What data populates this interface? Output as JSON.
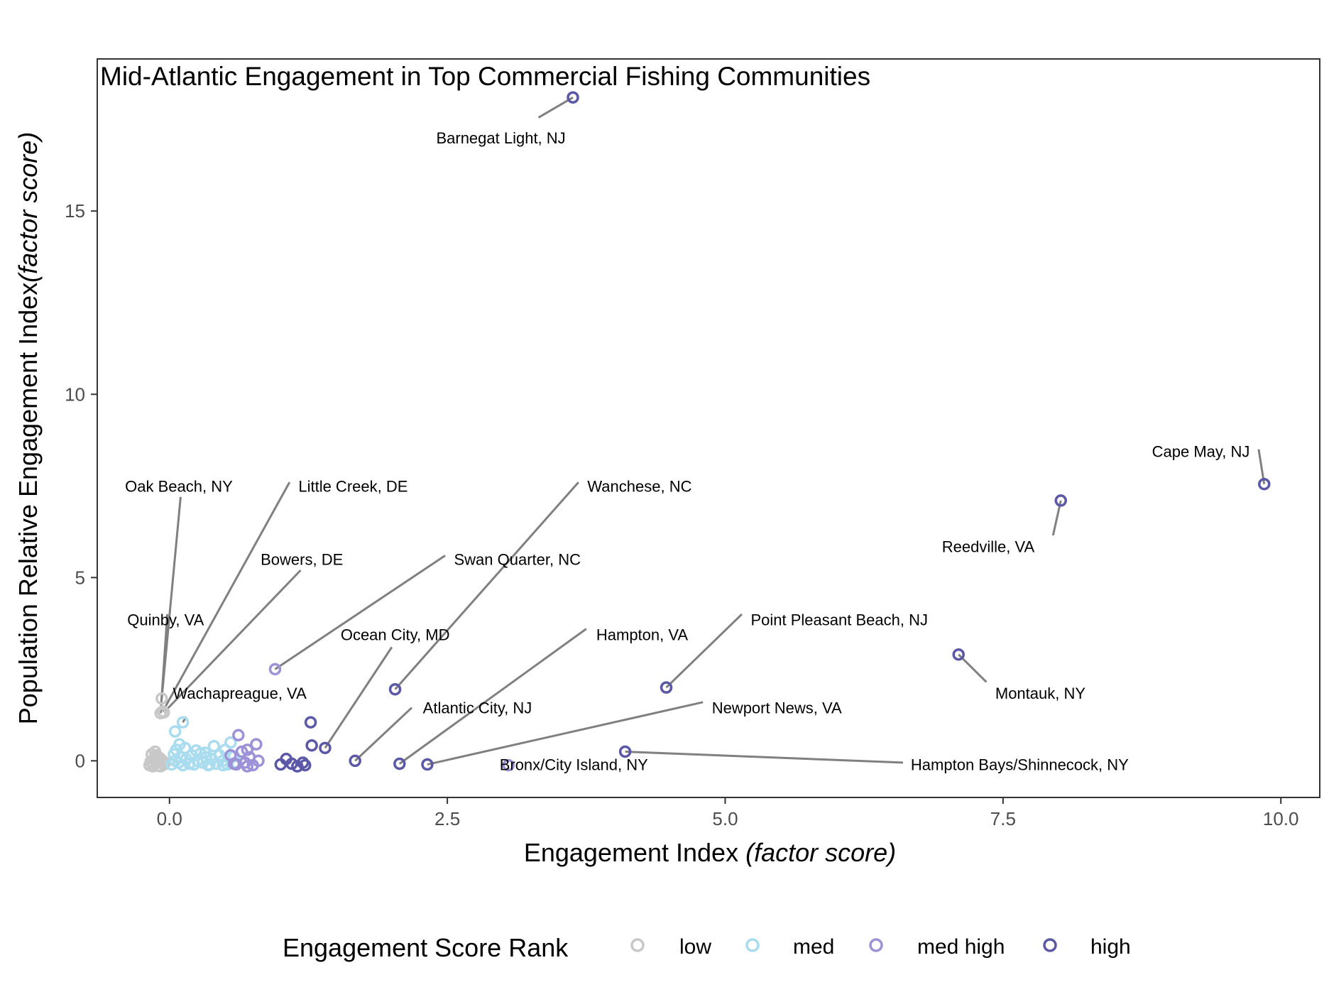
{
  "chart_data": {
    "type": "scatter",
    "title": "Mid-Atlantic Engagement in Top Commercial Fishing Communities",
    "xlabel": "Engagement Index",
    "xlabel_italic": "(factor score)",
    "ylabel": "Population Relative Engagement Index",
    "ylabel_italic": "(factor score)",
    "xlim": [
      -0.65,
      10.35
    ],
    "ylim": [
      -1.0,
      19.15
    ],
    "xticks": [
      0.0,
      2.5,
      5.0,
      7.5,
      10.0
    ],
    "xtick_labels": [
      "0.0",
      "2.5",
      "5.0",
      "7.5",
      "10.0"
    ],
    "yticks": [
      0,
      5,
      10,
      15
    ],
    "ytick_labels": [
      "0",
      "5",
      "10",
      "15"
    ],
    "grid": false,
    "legend": {
      "title": "Engagement Score Rank",
      "position": "bottom",
      "entries": [
        {
          "label": "low",
          "color": "#c8c8c8"
        },
        {
          "label": "med",
          "color": "#a9dcef"
        },
        {
          "label": "med high",
          "color": "#9d92d8"
        },
        {
          "label": "high",
          "color": "#5b58a8"
        }
      ]
    },
    "series": [
      {
        "name": "low",
        "color": "#c8c8c8",
        "points": [
          [
            -0.15,
            -0.1
          ],
          [
            -0.12,
            -0.05
          ],
          [
            -0.1,
            0.0
          ],
          [
            -0.18,
            -0.12
          ],
          [
            -0.08,
            -0.15
          ],
          [
            -0.14,
            0.05
          ],
          [
            -0.06,
            -0.08
          ],
          [
            -0.11,
            0.12
          ],
          [
            -0.16,
            0.18
          ],
          [
            -0.13,
            0.25
          ],
          [
            -0.09,
            0.08
          ],
          [
            -0.05,
            -0.1
          ],
          [
            -0.17,
            -0.02
          ],
          [
            -0.1,
            -0.14
          ],
          [
            -0.07,
            0.02
          ],
          [
            -0.12,
            0.15
          ],
          [
            -0.15,
            -0.15
          ],
          [
            -0.04,
            -0.05
          ],
          [
            -0.08,
            1.3
          ],
          [
            -0.06,
            1.35
          ],
          [
            -0.05,
            1.32
          ],
          [
            -0.07,
            1.7
          ]
        ]
      },
      {
        "name": "med",
        "color": "#a9dcef",
        "points": [
          [
            0.02,
            -0.1
          ],
          [
            0.05,
            0.0
          ],
          [
            0.08,
            -0.05
          ],
          [
            0.1,
            0.1
          ],
          [
            0.12,
            -0.12
          ],
          [
            0.15,
            0.05
          ],
          [
            0.18,
            -0.08
          ],
          [
            0.2,
            0.15
          ],
          [
            0.22,
            -0.1
          ],
          [
            0.25,
            0.0
          ],
          [
            0.28,
            0.2
          ],
          [
            0.3,
            -0.05
          ],
          [
            0.33,
            0.1
          ],
          [
            0.35,
            -0.12
          ],
          [
            0.38,
            0.05
          ],
          [
            0.4,
            0.4
          ],
          [
            0.42,
            -0.08
          ],
          [
            0.45,
            0.15
          ],
          [
            0.48,
            0.0
          ],
          [
            0.5,
            0.3
          ],
          [
            0.52,
            -0.1
          ],
          [
            0.55,
            0.5
          ],
          [
            0.58,
            0.12
          ],
          [
            0.6,
            -0.05
          ],
          [
            0.06,
            0.3
          ],
          [
            0.09,
            0.45
          ],
          [
            0.14,
            0.35
          ],
          [
            0.24,
            0.28
          ],
          [
            0.32,
            0.22
          ],
          [
            0.04,
            0.18
          ],
          [
            0.48,
            -0.12
          ],
          [
            0.36,
            -0.1
          ],
          [
            0.05,
            0.8
          ],
          [
            0.12,
            1.05
          ]
        ]
      },
      {
        "name": "med high",
        "color": "#9d92d8",
        "points": [
          [
            0.55,
            0.15
          ],
          [
            0.6,
            -0.1
          ],
          [
            0.62,
            0.7
          ],
          [
            0.65,
            0.25
          ],
          [
            0.68,
            -0.05
          ],
          [
            0.7,
            0.3
          ],
          [
            0.72,
            0.1
          ],
          [
            0.75,
            -0.12
          ],
          [
            0.78,
            0.45
          ],
          [
            0.8,
            0.0
          ],
          [
            0.58,
            -0.08
          ],
          [
            0.7,
            -0.15
          ],
          [
            0.95,
            2.5
          ],
          [
            3.05,
            -0.12
          ]
        ]
      },
      {
        "name": "high",
        "color": "#5b58a8",
        "points": [
          [
            1.0,
            -0.1
          ],
          [
            1.05,
            0.05
          ],
          [
            1.1,
            -0.08
          ],
          [
            1.15,
            -0.15
          ],
          [
            1.2,
            -0.05
          ],
          [
            1.22,
            -0.12
          ],
          [
            1.27,
            1.05
          ],
          [
            1.28,
            0.42
          ],
          [
            1.4,
            0.35
          ],
          [
            1.67,
            0.0
          ],
          [
            2.03,
            1.95
          ],
          [
            2.07,
            -0.08
          ],
          [
            2.32,
            -0.1
          ],
          [
            3.63,
            18.1
          ],
          [
            4.1,
            0.25
          ],
          [
            4.47,
            2.0
          ],
          [
            7.1,
            2.9
          ],
          [
            8.02,
            7.1
          ],
          [
            9.85,
            7.55
          ]
        ]
      }
    ],
    "annotations": [
      {
        "text": "Barnegat Light, NJ",
        "x": 3.63,
        "y": 18.1,
        "lx": 3.32,
        "ly": 17.55,
        "tx": 2.4,
        "ty": 17.0,
        "anchor": "start"
      },
      {
        "text": "Cape May, NJ",
        "x": 9.85,
        "y": 7.55,
        "lx": 9.8,
        "ly": 8.5,
        "tx": 9.72,
        "ty": 8.45,
        "anchor": "end"
      },
      {
        "text": "Reedville, VA",
        "x": 8.02,
        "y": 7.1,
        "lx": 7.95,
        "ly": 6.15,
        "tx": 6.95,
        "ty": 5.85,
        "anchor": "start"
      },
      {
        "text": "Oak Beach, NY",
        "x": -0.07,
        "y": 1.7,
        "lx": 0.1,
        "ly": 7.2,
        "tx": -0.4,
        "ty": 7.5,
        "anchor": "start"
      },
      {
        "text": "Little Creek, DE",
        "x": -0.06,
        "y": 1.35,
        "lx": 1.08,
        "ly": 7.6,
        "tx": 1.16,
        "ty": 7.5,
        "anchor": "start"
      },
      {
        "text": "Wanchese, NC",
        "x": 2.03,
        "y": 1.95,
        "lx": 3.68,
        "ly": 7.6,
        "tx": 3.76,
        "ty": 7.5,
        "anchor": "start"
      },
      {
        "text": "Bowers, DE",
        "x": -0.05,
        "y": 1.32,
        "lx": 1.18,
        "ly": 5.2,
        "tx": 0.82,
        "ty": 5.5,
        "anchor": "start"
      },
      {
        "text": "Swan Quarter, NC",
        "x": 0.95,
        "y": 2.5,
        "lx": 2.48,
        "ly": 5.6,
        "tx": 2.56,
        "ty": 5.5,
        "anchor": "start"
      },
      {
        "text": "Quinby, VA",
        "x": -0.08,
        "y": 1.3,
        "lx": -0.02,
        "ly": 4.0,
        "tx": -0.38,
        "ty": 3.85,
        "anchor": "start"
      },
      {
        "text": "Ocean City, MD",
        "x": 1.4,
        "y": 0.35,
        "lx": 2.0,
        "ly": 3.1,
        "tx": 1.54,
        "ty": 3.45,
        "anchor": "start"
      },
      {
        "text": "Hampton, VA",
        "x": 2.07,
        "y": -0.08,
        "lx": 3.75,
        "ly": 3.6,
        "tx": 3.84,
        "ty": 3.45,
        "anchor": "start"
      },
      {
        "text": "Point Pleasant Beach, NJ",
        "x": 4.47,
        "y": 2.0,
        "lx": 5.15,
        "ly": 4.0,
        "tx": 5.23,
        "ty": 3.85,
        "anchor": "start"
      },
      {
        "text": "Montauk, NY",
        "x": 7.1,
        "y": 2.9,
        "lx": 7.35,
        "ly": 2.15,
        "tx": 7.43,
        "ty": 1.85,
        "anchor": "start"
      },
      {
        "text": "Wachapreague, VA",
        "x": 0.12,
        "y": 1.05,
        "lx": 0.15,
        "ly": 1.2,
        "tx": 0.03,
        "ty": 1.85,
        "anchor": "start"
      },
      {
        "text": "Atlantic City, NJ",
        "x": 1.67,
        "y": 0.0,
        "lx": 2.18,
        "ly": 1.45,
        "tx": 2.28,
        "ty": 1.45,
        "anchor": "start"
      },
      {
        "text": "Newport News, VA",
        "x": 2.32,
        "y": -0.1,
        "lx": 4.8,
        "ly": 1.6,
        "tx": 4.88,
        "ty": 1.45,
        "anchor": "start"
      },
      {
        "text": "Bronx/City Island, NY",
        "x": 3.05,
        "y": -0.12,
        "lx": 3.05,
        "ly": -0.12,
        "tx": 2.97,
        "ty": -0.1,
        "anchor": "start"
      },
      {
        "text": "Hampton Bays/Shinnecock, NY",
        "x": 4.1,
        "y": 0.25,
        "lx": 6.6,
        "ly": -0.05,
        "tx": 6.67,
        "ty": -0.1,
        "anchor": "start"
      }
    ]
  }
}
